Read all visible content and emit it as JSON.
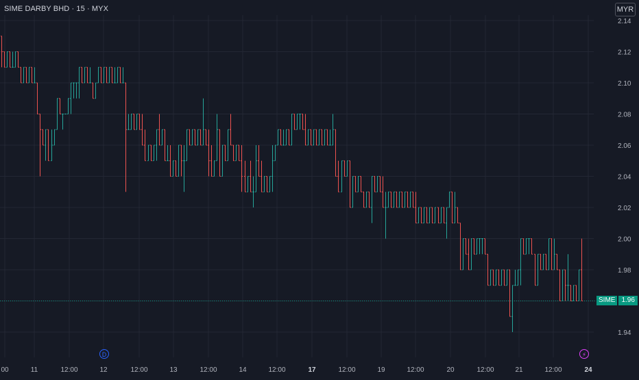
{
  "header": {
    "title": "SIME DARBY BHD · 15 · MYX",
    "currency": "MYR"
  },
  "last_price": {
    "symbol": "SIME",
    "value": "1.96"
  },
  "markers": {
    "dividend": "D",
    "earnings": "⚡"
  },
  "colors": {
    "up": "#26a69a",
    "down": "#ef5350",
    "grid": "#232734",
    "last_line": "#089981",
    "marker_div": "#2962ff",
    "marker_earn": "#e040fb"
  },
  "chart_data": {
    "type": "ohlc-bars",
    "interval": "15",
    "y_ticks": [
      2.14,
      2.12,
      2.1,
      2.08,
      2.06,
      2.04,
      2.02,
      2.0,
      1.98,
      1.96,
      1.94
    ],
    "y_tick_labels": [
      "2.14",
      "2.12",
      "2.10",
      "2.08",
      "2.06",
      "2.04",
      "2.02",
      "2.00",
      "1.98",
      "",
      "1.94"
    ],
    "ylim": [
      1.926,
      2.146
    ],
    "x_labels": [
      "00",
      "11",
      "12:00",
      "12",
      "12:00",
      "13",
      "12:00",
      "14",
      "12:00",
      "17",
      "12:00",
      "19",
      "12:00",
      "20",
      "12:00",
      "21",
      "12:00",
      "24"
    ],
    "x_label_bold": [
      false,
      false,
      false,
      false,
      false,
      false,
      false,
      false,
      false,
      true,
      false,
      false,
      false,
      false,
      false,
      false,
      false,
      true
    ],
    "last_value": 1.96,
    "bars": [
      [
        2.13,
        2.13,
        2.11,
        2.12
      ],
      [
        2.12,
        2.12,
        2.11,
        2.11
      ],
      [
        2.11,
        2.12,
        2.11,
        2.12
      ],
      [
        2.12,
        2.12,
        2.11,
        2.11
      ],
      [
        2.11,
        2.12,
        2.11,
        2.11
      ],
      [
        2.11,
        2.12,
        2.11,
        2.12
      ],
      [
        2.12,
        2.12,
        2.11,
        2.11
      ],
      [
        2.11,
        2.11,
        2.1,
        2.1
      ],
      [
        2.1,
        2.11,
        2.1,
        2.11
      ],
      [
        2.11,
        2.11,
        2.1,
        2.1
      ],
      [
        2.1,
        2.11,
        2.1,
        2.11
      ],
      [
        2.11,
        2.11,
        2.1,
        2.1
      ],
      [
        2.1,
        2.11,
        2.1,
        2.1
      ],
      [
        2.1,
        2.1,
        2.08,
        2.08
      ],
      [
        2.08,
        2.08,
        2.04,
        2.07
      ],
      [
        2.07,
        2.07,
        2.06,
        2.06
      ],
      [
        2.06,
        2.07,
        2.05,
        2.07
      ],
      [
        2.07,
        2.07,
        2.05,
        2.05
      ],
      [
        2.05,
        2.07,
        2.05,
        2.06
      ],
      [
        2.06,
        2.07,
        2.06,
        2.07
      ],
      [
        2.07,
        2.09,
        2.07,
        2.09
      ],
      [
        2.09,
        2.09,
        2.08,
        2.08
      ],
      [
        2.08,
        2.08,
        2.07,
        2.08
      ],
      [
        2.08,
        2.08,
        2.08,
        2.08
      ],
      [
        2.08,
        2.09,
        2.08,
        2.09
      ],
      [
        2.09,
        2.1,
        2.08,
        2.1
      ],
      [
        2.1,
        2.1,
        2.09,
        2.1
      ],
      [
        2.1,
        2.1,
        2.09,
        2.1
      ],
      [
        2.1,
        2.11,
        2.09,
        2.11
      ],
      [
        2.11,
        2.11,
        2.1,
        2.1
      ],
      [
        2.1,
        2.11,
        2.1,
        2.11
      ],
      [
        2.11,
        2.11,
        2.1,
        2.1
      ],
      [
        2.1,
        2.11,
        2.1,
        2.1
      ],
      [
        2.1,
        2.1,
        2.09,
        2.09
      ],
      [
        2.09,
        2.1,
        2.09,
        2.1
      ],
      [
        2.1,
        2.11,
        2.1,
        2.11
      ],
      [
        2.11,
        2.11,
        2.1,
        2.1
      ],
      [
        2.1,
        2.11,
        2.1,
        2.11
      ],
      [
        2.11,
        2.11,
        2.1,
        2.1
      ],
      [
        2.1,
        2.11,
        2.1,
        2.11
      ],
      [
        2.11,
        2.11,
        2.1,
        2.1
      ],
      [
        2.1,
        2.11,
        2.1,
        2.1
      ],
      [
        2.1,
        2.11,
        2.1,
        2.11
      ],
      [
        2.11,
        2.11,
        2.1,
        2.1
      ],
      [
        2.1,
        2.11,
        2.1,
        2.1
      ],
      [
        2.1,
        2.1,
        2.03,
        2.07
      ],
      [
        2.07,
        2.08,
        2.07,
        2.07
      ],
      [
        2.07,
        2.08,
        2.07,
        2.08
      ],
      [
        2.08,
        2.08,
        2.07,
        2.07
      ],
      [
        2.07,
        2.08,
        2.07,
        2.08
      ],
      [
        2.08,
        2.08,
        2.07,
        2.07
      ],
      [
        2.07,
        2.08,
        2.06,
        2.06
      ],
      [
        2.06,
        2.07,
        2.05,
        2.05
      ],
      [
        2.05,
        2.06,
        2.05,
        2.06
      ],
      [
        2.06,
        2.06,
        2.05,
        2.05
      ],
      [
        2.05,
        2.06,
        2.05,
        2.06
      ],
      [
        2.06,
        2.07,
        2.05,
        2.07
      ],
      [
        2.07,
        2.08,
        2.06,
        2.06
      ],
      [
        2.06,
        2.07,
        2.06,
        2.07
      ],
      [
        2.07,
        2.07,
        2.05,
        2.05
      ],
      [
        2.05,
        2.06,
        2.05,
        2.05
      ],
      [
        2.05,
        2.06,
        2.04,
        2.04
      ],
      [
        2.04,
        2.05,
        2.04,
        2.05
      ],
      [
        2.05,
        2.05,
        2.04,
        2.04
      ],
      [
        2.04,
        2.06,
        2.04,
        2.06
      ],
      [
        2.06,
        2.06,
        2.04,
        2.05
      ],
      [
        2.05,
        2.06,
        2.03,
        2.05
      ],
      [
        2.05,
        2.07,
        2.05,
        2.07
      ],
      [
        2.07,
        2.07,
        2.06,
        2.06
      ],
      [
        2.06,
        2.07,
        2.06,
        2.07
      ],
      [
        2.07,
        2.07,
        2.06,
        2.06
      ],
      [
        2.06,
        2.07,
        2.06,
        2.07
      ],
      [
        2.07,
        2.07,
        2.06,
        2.06
      ],
      [
        2.06,
        2.09,
        2.06,
        2.07
      ],
      [
        2.07,
        2.07,
        2.06,
        2.06
      ],
      [
        2.06,
        2.07,
        2.04,
        2.05
      ],
      [
        2.05,
        2.06,
        2.04,
        2.04
      ],
      [
        2.04,
        2.05,
        2.04,
        2.05
      ],
      [
        2.05,
        2.08,
        2.05,
        2.07
      ],
      [
        2.07,
        2.07,
        2.04,
        2.04
      ],
      [
        2.04,
        2.06,
        2.04,
        2.06
      ],
      [
        2.06,
        2.06,
        2.05,
        2.05
      ],
      [
        2.05,
        2.07,
        2.05,
        2.07
      ],
      [
        2.07,
        2.08,
        2.06,
        2.06
      ],
      [
        2.06,
        2.06,
        2.05,
        2.05
      ],
      [
        2.05,
        2.06,
        2.05,
        2.06
      ],
      [
        2.06,
        2.06,
        2.05,
        2.05
      ],
      [
        2.05,
        2.06,
        2.03,
        2.04
      ],
      [
        2.04,
        2.05,
        2.03,
        2.03
      ],
      [
        2.03,
        2.04,
        2.03,
        2.04
      ],
      [
        2.04,
        2.05,
        2.03,
        2.03
      ],
      [
        2.03,
        2.04,
        2.02,
        2.03
      ],
      [
        2.03,
        2.06,
        2.03,
        2.05
      ],
      [
        2.05,
        2.06,
        2.04,
        2.04
      ],
      [
        2.04,
        2.05,
        2.03,
        2.03
      ],
      [
        2.03,
        2.04,
        2.03,
        2.04
      ],
      [
        2.04,
        2.04,
        2.03,
        2.03
      ],
      [
        2.03,
        2.04,
        2.03,
        2.04
      ],
      [
        2.04,
        2.06,
        2.03,
        2.05
      ],
      [
        2.05,
        2.06,
        2.05,
        2.06
      ],
      [
        2.06,
        2.07,
        2.06,
        2.07
      ],
      [
        2.07,
        2.07,
        2.06,
        2.06
      ],
      [
        2.06,
        2.07,
        2.06,
        2.06
      ],
      [
        2.06,
        2.07,
        2.06,
        2.07
      ],
      [
        2.07,
        2.07,
        2.06,
        2.06
      ],
      [
        2.06,
        2.08,
        2.06,
        2.08
      ],
      [
        2.08,
        2.08,
        2.07,
        2.07
      ],
      [
        2.07,
        2.08,
        2.07,
        2.08
      ],
      [
        2.08,
        2.08,
        2.07,
        2.08
      ],
      [
        2.08,
        2.08,
        2.07,
        2.07
      ],
      [
        2.07,
        2.08,
        2.06,
        2.06
      ],
      [
        2.06,
        2.07,
        2.06,
        2.07
      ],
      [
        2.07,
        2.07,
        2.06,
        2.06
      ],
      [
        2.06,
        2.07,
        2.06,
        2.07
      ],
      [
        2.07,
        2.07,
        2.06,
        2.06
      ],
      [
        2.06,
        2.07,
        2.06,
        2.07
      ],
      [
        2.07,
        2.07,
        2.06,
        2.06
      ],
      [
        2.06,
        2.07,
        2.06,
        2.07
      ],
      [
        2.07,
        2.07,
        2.06,
        2.06
      ],
      [
        2.06,
        2.07,
        2.06,
        2.06
      ],
      [
        2.06,
        2.08,
        2.06,
        2.07
      ],
      [
        2.07,
        2.07,
        2.04,
        2.04
      ],
      [
        2.04,
        2.05,
        2.03,
        2.03
      ],
      [
        2.03,
        2.05,
        2.03,
        2.05
      ],
      [
        2.05,
        2.05,
        2.04,
        2.04
      ],
      [
        2.04,
        2.05,
        2.04,
        2.05
      ],
      [
        2.05,
        2.05,
        2.02,
        2.02
      ],
      [
        2.02,
        2.04,
        2.02,
        2.04
      ],
      [
        2.04,
        2.04,
        2.03,
        2.03
      ],
      [
        2.03,
        2.04,
        2.03,
        2.04
      ],
      [
        2.04,
        2.04,
        2.03,
        2.03
      ],
      [
        2.03,
        2.03,
        2.02,
        2.02
      ],
      [
        2.02,
        2.03,
        2.02,
        2.03
      ],
      [
        2.03,
        2.03,
        2.02,
        2.02
      ],
      [
        2.02,
        2.04,
        2.01,
        2.04
      ],
      [
        2.04,
        2.04,
        2.03,
        2.03
      ],
      [
        2.03,
        2.04,
        2.03,
        2.04
      ],
      [
        2.04,
        2.04,
        2.03,
        2.03
      ],
      [
        2.03,
        2.04,
        2.02,
        2.02
      ],
      [
        2.02,
        2.03,
        2.0,
        2.02
      ],
      [
        2.02,
        2.03,
        2.02,
        2.03
      ],
      [
        2.03,
        2.03,
        2.02,
        2.02
      ],
      [
        2.02,
        2.03,
        2.02,
        2.03
      ],
      [
        2.03,
        2.03,
        2.02,
        2.02
      ],
      [
        2.02,
        2.03,
        2.02,
        2.03
      ],
      [
        2.03,
        2.03,
        2.02,
        2.02
      ],
      [
        2.02,
        2.03,
        2.02,
        2.03
      ],
      [
        2.03,
        2.03,
        2.02,
        2.02
      ],
      [
        2.02,
        2.03,
        2.02,
        2.03
      ],
      [
        2.03,
        2.03,
        2.02,
        2.02
      ],
      [
        2.02,
        2.03,
        2.01,
        2.01
      ],
      [
        2.01,
        2.02,
        2.01,
        2.02
      ],
      [
        2.02,
        2.02,
        2.01,
        2.01
      ],
      [
        2.01,
        2.02,
        2.01,
        2.02
      ],
      [
        2.02,
        2.02,
        2.01,
        2.01
      ],
      [
        2.01,
        2.02,
        2.01,
        2.02
      ],
      [
        2.02,
        2.02,
        2.01,
        2.01
      ],
      [
        2.01,
        2.02,
        2.01,
        2.02
      ],
      [
        2.02,
        2.02,
        2.01,
        2.01
      ],
      [
        2.01,
        2.02,
        2.01,
        2.02
      ],
      [
        2.02,
        2.02,
        2.01,
        2.01
      ],
      [
        2.01,
        2.02,
        2.0,
        2.02
      ],
      [
        2.02,
        2.03,
        2.02,
        2.03
      ],
      [
        2.03,
        2.03,
        2.01,
        2.01
      ],
      [
        2.01,
        2.03,
        2.01,
        2.02
      ],
      [
        2.02,
        2.02,
        2.01,
        2.01
      ],
      [
        2.01,
        2.01,
        1.98,
        1.98
      ],
      [
        1.98,
        2.0,
        1.98,
        2.0
      ],
      [
        2.0,
        2.0,
        1.99,
        1.99
      ],
      [
        1.99,
        2.0,
        1.98,
        1.98
      ],
      [
        1.98,
        2.0,
        1.98,
        2.0
      ],
      [
        2.0,
        2.0,
        1.99,
        1.99
      ],
      [
        1.99,
        2.0,
        1.99,
        2.0
      ],
      [
        2.0,
        2.0,
        1.99,
        2.0
      ],
      [
        2.0,
        2.0,
        1.99,
        2.0
      ],
      [
        2.0,
        2.0,
        1.99,
        1.99
      ],
      [
        1.99,
        1.99,
        1.97,
        1.97
      ],
      [
        1.97,
        1.98,
        1.97,
        1.98
      ],
      [
        1.98,
        1.98,
        1.97,
        1.97
      ],
      [
        1.97,
        1.98,
        1.97,
        1.98
      ],
      [
        1.98,
        1.98,
        1.97,
        1.97
      ],
      [
        1.97,
        1.98,
        1.97,
        1.98
      ],
      [
        1.98,
        1.98,
        1.97,
        1.97
      ],
      [
        1.97,
        1.98,
        1.97,
        1.98
      ],
      [
        1.98,
        1.98,
        1.95,
        1.95
      ],
      [
        1.95,
        1.97,
        1.94,
        1.97
      ],
      [
        1.97,
        1.98,
        1.97,
        1.97
      ],
      [
        1.97,
        1.98,
        1.97,
        1.98
      ],
      [
        1.98,
        2.0,
        1.97,
        2.0
      ],
      [
        2.0,
        2.0,
        1.99,
        1.99
      ],
      [
        1.99,
        2.0,
        1.99,
        2.0
      ],
      [
        2.0,
        2.0,
        1.99,
        2.0
      ],
      [
        2.0,
        2.0,
        1.99,
        1.99
      ],
      [
        1.99,
        1.99,
        1.97,
        1.97
      ],
      [
        1.97,
        1.99,
        1.97,
        1.99
      ],
      [
        1.99,
        1.99,
        1.98,
        1.98
      ],
      [
        1.98,
        1.99,
        1.98,
        1.99
      ],
      [
        1.99,
        1.99,
        1.98,
        1.98
      ],
      [
        1.98,
        2.0,
        1.98,
        2.0
      ],
      [
        2.0,
        2.0,
        1.98,
        1.98
      ],
      [
        1.98,
        2.0,
        1.98,
        1.99
      ],
      [
        1.99,
        1.99,
        1.98,
        1.98
      ],
      [
        1.98,
        1.98,
        1.96,
        1.96
      ],
      [
        1.96,
        1.98,
        1.96,
        1.98
      ],
      [
        1.98,
        1.98,
        1.96,
        1.97
      ],
      [
        1.97,
        1.99,
        1.96,
        1.97
      ],
      [
        1.97,
        1.97,
        1.96,
        1.96
      ],
      [
        1.96,
        1.97,
        1.96,
        1.97
      ],
      [
        1.97,
        1.97,
        1.96,
        1.96
      ],
      [
        1.96,
        1.98,
        1.96,
        1.98
      ],
      [
        1.98,
        2.0,
        1.96,
        1.96
      ]
    ]
  }
}
